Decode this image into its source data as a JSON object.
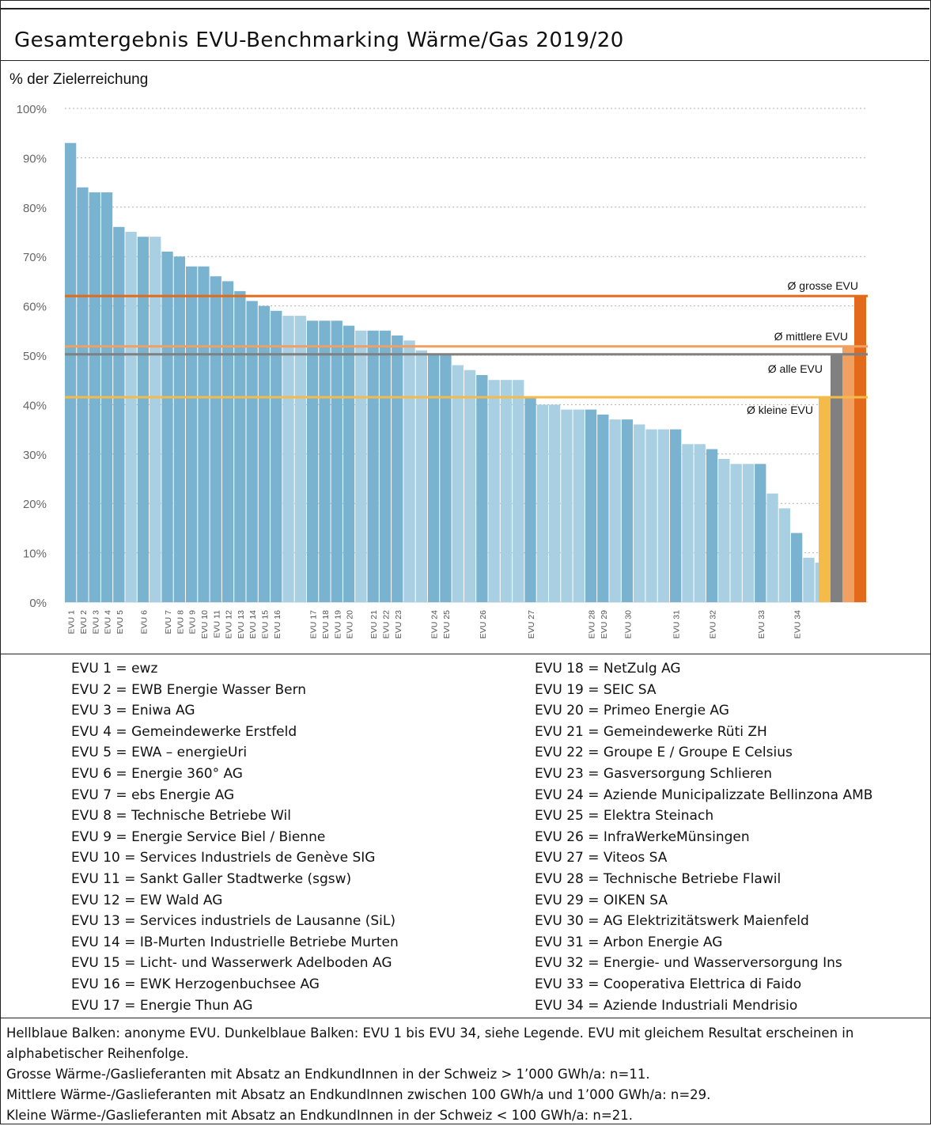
{
  "title": "Gesamtergebnis EVU-Benchmarking Wärme/Gas 2019/20",
  "colors": {
    "dark_bar": "#79b3d0",
    "light_bar": "#a9cfe2",
    "grosse": "#e36a1a",
    "mittlere": "#f0a060",
    "alle": "#808080",
    "kleine": "#f5bb4a",
    "grid": "#b0b0b0"
  },
  "chart_data": {
    "type": "bar",
    "ylabel": "% der Zielerreichung",
    "ylim": [
      0,
      100
    ],
    "yticks": [
      "0%",
      "10%",
      "20%",
      "30%",
      "40%",
      "50%",
      "60%",
      "70%",
      "80%",
      "90%",
      "100%"
    ],
    "grid": "horizontal dotted",
    "values": [
      93,
      84,
      83,
      83,
      76,
      75,
      74,
      74,
      71,
      70,
      68,
      68,
      66,
      65,
      63,
      61,
      60,
      59,
      58,
      58,
      57,
      57,
      57,
      56,
      55,
      55,
      55,
      54,
      53,
      51,
      50,
      50,
      48,
      47,
      46,
      45,
      45,
      45,
      41.5,
      40,
      40,
      39,
      39,
      39,
      38,
      37,
      37,
      36,
      35,
      35,
      35,
      32,
      32,
      31,
      29,
      28,
      28,
      28,
      22,
      19,
      14,
      9,
      8
    ],
    "bar_labels": [
      "EVU 1",
      "EVU 2",
      "EVU 3",
      "EVU 4",
      "EVU 5",
      "",
      "EVU 6",
      "",
      "EVU 7",
      "EVU 8",
      "EVU 9",
      "EVU 10",
      "EVU 11",
      "EVU 12",
      "EVU 13",
      "EVU 14",
      "EVU 15",
      "EVU 16",
      "",
      "",
      "EVU 17",
      "EVU 18",
      "EVU 19",
      "EVU 20",
      "",
      "EVU 21",
      "EVU 22",
      "EVU 23",
      "",
      "",
      "EVU 24",
      "EVU 25",
      "",
      "",
      "EVU 26",
      "",
      "",
      "",
      "EVU 27",
      "",
      "",
      "",
      "",
      "EVU 28",
      "EVU 29",
      "",
      "EVU 30",
      "",
      "",
      "",
      "EVU 31",
      "",
      "",
      "EVU 32",
      "",
      "",
      "",
      "EVU 33",
      "",
      "",
      "EVU 34",
      "",
      ""
    ],
    "averages": [
      {
        "label": "Ø grosse EVU",
        "value": 62,
        "color": "#e36a1a"
      },
      {
        "label": "Ø mittlere EVU",
        "value": 51.8,
        "color": "#f0a060"
      },
      {
        "label": "Ø alle EVU",
        "value": 50.2,
        "color": "#808080"
      },
      {
        "label": "Ø kleine EVU",
        "value": 41.5,
        "color": "#f5bb4a"
      }
    ]
  },
  "legend_left": [
    "EVU 1 = ewz",
    "EVU 2 = EWB Energie Wasser Bern",
    "EVU 3 = Eniwa AG",
    "EVU 4 = Gemeindewerke Erstfeld",
    "EVU 5 = EWA – energieUri",
    "EVU 6 = Energie 360° AG",
    "EVU 7 = ebs Energie AG",
    "EVU 8 = Technische Betriebe Wil",
    "EVU 9 = Energie Service Biel / Bienne",
    "EVU 10 = Services Industriels de Genève SIG",
    "EVU 11 = Sankt Galler Stadtwerke (sgsw)",
    "EVU 12 = EW Wald AG",
    "EVU 13 = Services industriels de Lausanne (SiL)",
    "EVU 14 = IB-Murten Industrielle Betriebe Murten",
    "EVU 15 = Licht- und Wasserwerk Adelboden AG",
    "EVU 16 = EWK Herzogenbuchsee AG",
    "EVU 17 = Energie Thun AG"
  ],
  "legend_right": [
    "EVU 18 = NetZulg AG",
    "EVU 19 = SEIC SA",
    "EVU 20 = Primeo Energie AG",
    "EVU 21 = Gemeindewerke Rüti ZH",
    "EVU 22 = Groupe E / Groupe E Celsius",
    "EVU 23 = Gasversorgung Schlieren",
    "EVU 24 = Aziende Municipalizzate Bellinzona AMB",
    "EVU 25 = Elektra Steinach",
    "EVU 26 = InfraWerkeMünsingen",
    "EVU 27 = Viteos SA",
    "EVU 28 = Technische Betriebe Flawil",
    "EVU 29 = OIKEN SA",
    "EVU 30 = AG Elektrizitätswerk Maienfeld",
    "EVU 31 = Arbon Energie AG",
    "EVU 32 = Energie- und Wasserversorgung Ins",
    "EVU 33 = Cooperativa Elettrica di Faido",
    "EVU 34 = Aziende Industriali Mendrisio"
  ],
  "notes": [
    "Hellblaue Balken: anonyme EVU. Dunkelblaue Balken: EVU 1 bis EVU 34, siehe Legende. EVU mit gleichem Resultat erscheinen in alphabetischer Reihenfolge.",
    "Grosse Wärme-/Gaslieferanten mit Absatz an EndkundInnen in der Schweiz > 1’000 GWh/a: n=11.",
    "Mittlere Wärme-/Gaslieferanten mit Absatz an EndkundInnen zwischen 100 GWh/a und 1’000 GWh/a: n=29.",
    "Kleine Wärme-/Gaslieferanten mit Absatz an EndkundInnen in der Schweiz < 100 GWh/a: n=21."
  ]
}
